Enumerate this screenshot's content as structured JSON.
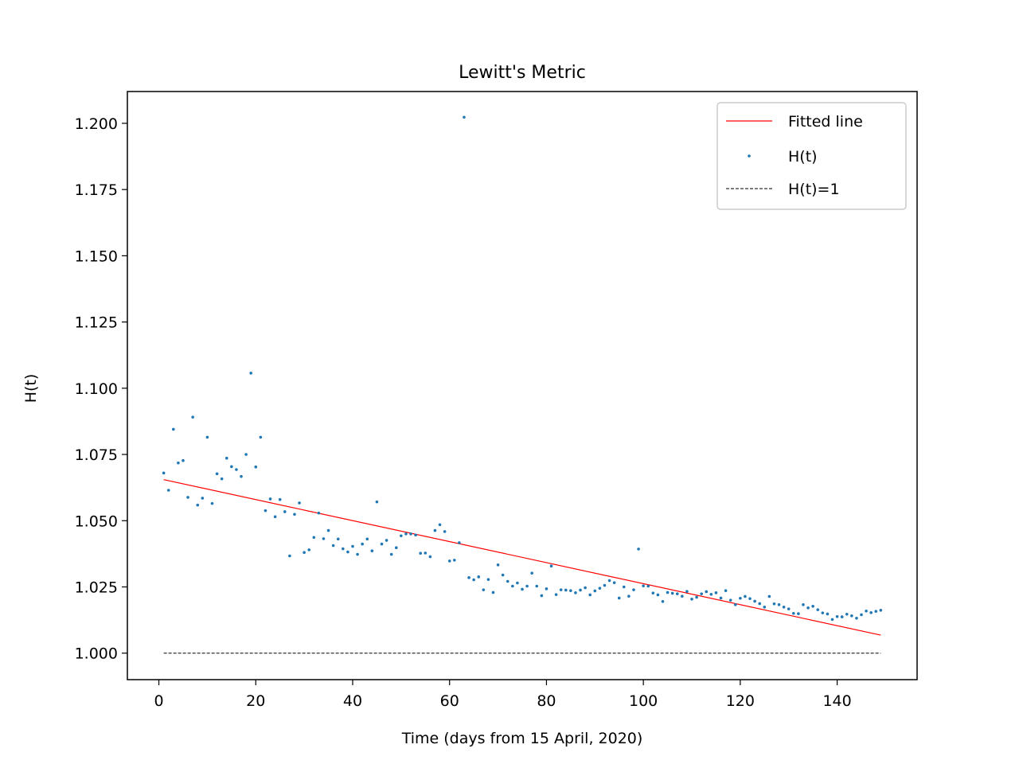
{
  "chart_data": {
    "type": "scatter",
    "title": "Lewitt's Metric",
    "xlabel": "Time (days from 15 April, 2020)",
    "ylabel": "H(t)",
    "xlim": [
      -6.5,
      156.5
    ],
    "ylim": [
      0.99,
      1.212
    ],
    "xticks": [
      0,
      20,
      40,
      60,
      80,
      100,
      120,
      140
    ],
    "yticks": [
      1.0,
      1.025,
      1.05,
      1.075,
      1.1,
      1.125,
      1.15,
      1.175,
      1.2
    ],
    "ytick_labels": [
      "1.000",
      "1.025",
      "1.050",
      "1.075",
      "1.100",
      "1.125",
      "1.150",
      "1.175",
      "1.200"
    ],
    "grid": false,
    "legend_position": "top-right",
    "colors": {
      "points": "#1f77b4",
      "fitted": "#ff0000",
      "reference": "#000000"
    },
    "legend": [
      "Fitted line",
      "H(t)",
      "H(t)=1"
    ],
    "series": [
      {
        "name": "Fitted line",
        "kind": "line",
        "style": "solid",
        "x": [
          1,
          149
        ],
        "y": [
          1.0655,
          1.0068
        ]
      },
      {
        "name": "H(t)",
        "kind": "scatter",
        "x": [
          1,
          2,
          3,
          4,
          5,
          6,
          7,
          8,
          9,
          10,
          11,
          12,
          13,
          14,
          15,
          16,
          17,
          18,
          19,
          20,
          21,
          22,
          23,
          24,
          25,
          26,
          27,
          28,
          29,
          30,
          31,
          32,
          33,
          34,
          35,
          36,
          37,
          38,
          39,
          40,
          41,
          42,
          43,
          44,
          45,
          46,
          47,
          48,
          49,
          50,
          51,
          52,
          53,
          54,
          55,
          56,
          57,
          58,
          59,
          60,
          61,
          62,
          63,
          64,
          65,
          66,
          67,
          68,
          69,
          70,
          71,
          72,
          73,
          74,
          75,
          76,
          77,
          78,
          79,
          80,
          81,
          82,
          83,
          84,
          85,
          86,
          87,
          88,
          89,
          90,
          91,
          92,
          93,
          94,
          95,
          96,
          97,
          98,
          99,
          100,
          101,
          102,
          103,
          104,
          105,
          106,
          107,
          108,
          109,
          110,
          111,
          112,
          113,
          114,
          115,
          116,
          117,
          118,
          119,
          120,
          121,
          122,
          123,
          124,
          125,
          126,
          127,
          128,
          129,
          130,
          131,
          132,
          133,
          134,
          135,
          136,
          137,
          138,
          139,
          140,
          141,
          142,
          143,
          144,
          145,
          146,
          147,
          148,
          149
        ],
        "y": [
          1.068,
          1.0615,
          1.0845,
          1.0718,
          1.0727,
          1.0588,
          1.0891,
          1.0559,
          1.0585,
          1.0815,
          1.0565,
          1.0677,
          1.0658,
          1.0736,
          1.0704,
          1.0693,
          1.0667,
          1.075,
          1.1057,
          1.0703,
          1.0815,
          1.0538,
          1.0582,
          1.0515,
          1.058,
          1.0534,
          1.0367,
          1.0524,
          1.0567,
          1.038,
          1.039,
          1.0437,
          1.0529,
          1.0432,
          1.0463,
          1.0406,
          1.0431,
          1.0394,
          1.0382,
          1.0403,
          1.0373,
          1.0412,
          1.0431,
          1.0386,
          1.0571,
          1.0412,
          1.0426,
          1.0373,
          1.0398,
          1.0443,
          1.045,
          1.045,
          1.0446,
          1.0377,
          1.0378,
          1.0364,
          1.0463,
          1.0485,
          1.0459,
          1.0348,
          1.0351,
          1.0417,
          1.2023,
          1.0285,
          1.0277,
          1.0288,
          1.0239,
          1.0278,
          1.0229,
          1.0333,
          1.0295,
          1.0271,
          1.0253,
          1.0265,
          1.0241,
          1.0253,
          1.0302,
          1.0253,
          1.0217,
          1.0243,
          1.0329,
          1.0221,
          1.0239,
          1.0238,
          1.0236,
          1.0228,
          1.0238,
          1.0247,
          1.022,
          1.0235,
          1.0245,
          1.0256,
          1.0274,
          1.0266,
          1.0208,
          1.025,
          1.0215,
          1.0239,
          1.0393,
          1.0254,
          1.0253,
          1.0227,
          1.022,
          1.0195,
          1.0229,
          1.0226,
          1.0224,
          1.0215,
          1.0233,
          1.0204,
          1.0211,
          1.0224,
          1.0232,
          1.0222,
          1.0228,
          1.0208,
          1.0236,
          1.02,
          1.0183,
          1.0207,
          1.0214,
          1.0206,
          1.0196,
          1.0187,
          1.0174,
          1.0214,
          1.0186,
          1.0183,
          1.0174,
          1.0167,
          1.015,
          1.0149,
          1.0183,
          1.0171,
          1.0177,
          1.0164,
          1.0152,
          1.0148,
          1.0127,
          1.0138,
          1.0137,
          1.0147,
          1.0141,
          1.0132,
          1.0145,
          1.0159,
          1.0153,
          1.0158,
          1.0162
        ]
      },
      {
        "name": "H(t)=1",
        "kind": "line",
        "style": "dashed",
        "x": [
          1,
          149
        ],
        "y": [
          1.0,
          1.0
        ]
      }
    ]
  }
}
